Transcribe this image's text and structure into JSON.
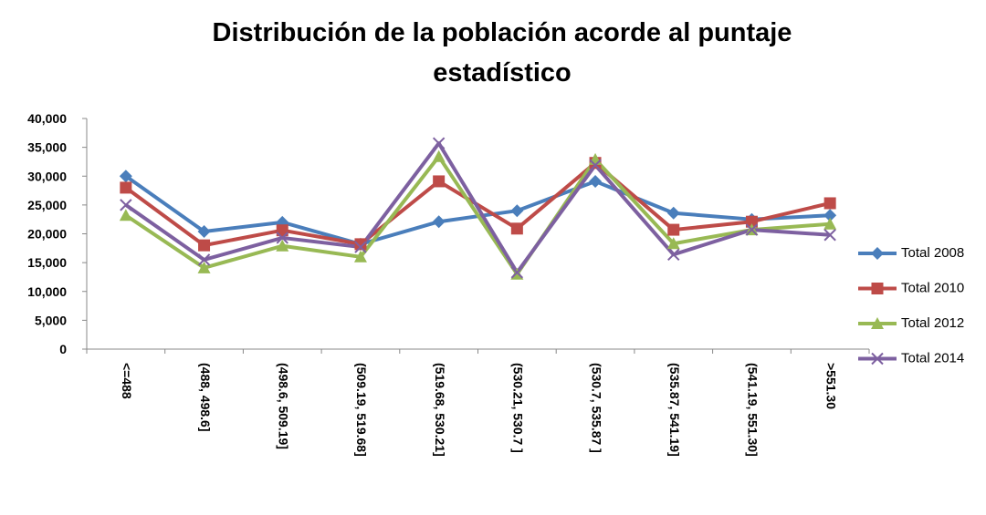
{
  "chart_data": {
    "type": "line",
    "title": "Distribución de la población acorde al puntaje estadístico",
    "categories": [
      "<=488",
      "(488, 498.6]",
      "(498.6, 509.19]",
      "(509.19, 519.68]",
      "(519.68, 530.21]",
      "(530.21, 530.7 ]",
      "(530.7, 535.87 ]",
      "(535.87, 541.19]",
      "(541.19, 551.30]",
      ">551.30"
    ],
    "series": [
      {
        "name": "Total 2008",
        "color": "#4a7ebb",
        "marker": "diamond",
        "values": [
          30000,
          20400,
          22000,
          18200,
          22100,
          24000,
          29100,
          23600,
          22500,
          23200
        ]
      },
      {
        "name": "Total 2010",
        "color": "#be4b48",
        "marker": "square",
        "values": [
          28000,
          18000,
          20600,
          18200,
          29100,
          20900,
          32300,
          20700,
          22100,
          25300
        ]
      },
      {
        "name": "Total 2012",
        "color": "#98b954",
        "marker": "triangle",
        "values": [
          23200,
          14100,
          17900,
          16000,
          33400,
          13000,
          32900,
          18300,
          20700,
          21700
        ]
      },
      {
        "name": "Total 2014",
        "color": "#7d60a0",
        "marker": "x",
        "values": [
          25000,
          15500,
          19300,
          17700,
          35700,
          13300,
          31900,
          16400,
          20700,
          19800
        ]
      }
    ],
    "ylim": [
      0,
      40000
    ],
    "yticks": [
      0,
      {
        "value": 5000,
        "label": "5,000"
      },
      {
        "value": 10000,
        "label": "10,000"
      },
      {
        "value": 15000,
        "label": "15,000"
      },
      {
        "value": 20000,
        "label": "20,000"
      },
      {
        "value": 25000,
        "label": "25,000"
      },
      {
        "value": 30000,
        "label": "30,000"
      },
      {
        "value": 35000,
        "label": "35,000"
      },
      {
        "value": 40000,
        "label": "40,000"
      }
    ],
    "grid": false,
    "legend": "right"
  }
}
